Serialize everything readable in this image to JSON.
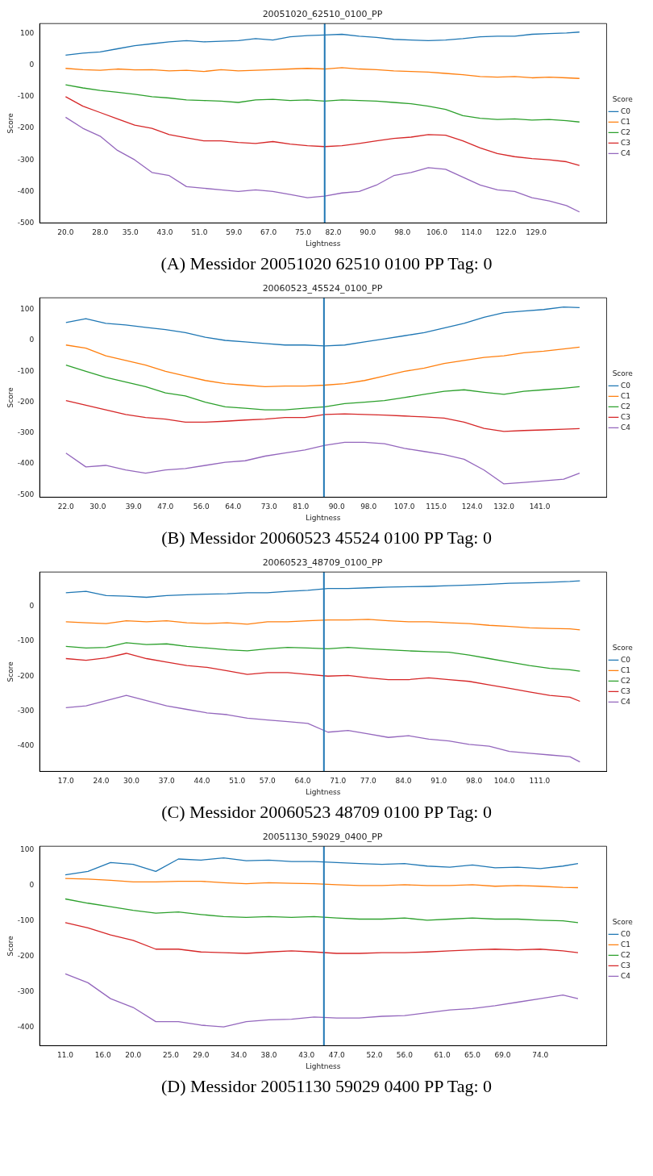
{
  "chart_data": [
    {
      "type": "line",
      "title": "20051020_62510_0100_PP",
      "xlabel": "Lightness",
      "ylabel": "Score",
      "legend_title": "Score",
      "legend": "right",
      "annotations": [
        "(A) Messidor 20051020 62510 0100 PP Tag: 0"
      ],
      "x": [
        20,
        24,
        28,
        32,
        36,
        40,
        44,
        48,
        52,
        56,
        60,
        64,
        68,
        72,
        76,
        80,
        84,
        88,
        92,
        96,
        100,
        104,
        108,
        112,
        116,
        120,
        124,
        128,
        132,
        136,
        139
      ],
      "xlim": [
        14,
        145.3
      ],
      "ylim": [
        -500,
        132
      ],
      "xticks": [
        {
          "value": 20,
          "label": "20.0"
        },
        {
          "value": 28,
          "label": "28.0"
        },
        {
          "value": 35,
          "label": "35.0"
        },
        {
          "value": 43,
          "label": "43.0"
        },
        {
          "value": 51,
          "label": "51.0"
        },
        {
          "value": 59,
          "label": "59.0"
        },
        {
          "value": 67,
          "label": "67.0"
        },
        {
          "value": 75,
          "label": "75.0"
        },
        {
          "value": 82,
          "label": "82.0"
        },
        {
          "value": 90,
          "label": "90.0"
        },
        {
          "value": 98,
          "label": "98.0"
        },
        {
          "value": 106,
          "label": "106.0"
        },
        {
          "value": 114,
          "label": "114.0"
        },
        {
          "value": 122,
          "label": "122.0"
        },
        {
          "value": 129,
          "label": "129.0"
        }
      ],
      "yticks": [
        -500,
        -400,
        -300,
        -200,
        -100,
        0,
        100
      ],
      "ref_lines": [
        {
          "axis": "x",
          "value": 80,
          "color": "#1f77b4"
        }
      ],
      "series": [
        {
          "name": "C0",
          "color": "#1f77b4",
          "values": [
            32,
            38,
            42,
            52,
            62,
            68,
            74,
            78,
            74,
            76,
            78,
            84,
            80,
            90,
            94,
            96,
            98,
            92,
            88,
            82,
            80,
            78,
            80,
            84,
            90,
            92,
            92,
            98,
            100,
            102,
            105
          ]
        },
        {
          "name": "C1",
          "color": "#ff7f0e",
          "values": [
            -10,
            -14,
            -16,
            -12,
            -15,
            -14,
            -18,
            -16,
            -20,
            -14,
            -18,
            -16,
            -14,
            -12,
            -10,
            -12,
            -8,
            -12,
            -14,
            -18,
            -20,
            -22,
            -26,
            -30,
            -36,
            -38,
            -36,
            -40,
            -38,
            -40,
            -42
          ]
        },
        {
          "name": "C2",
          "color": "#2ca02c",
          "values": [
            -62,
            -72,
            -80,
            -86,
            -92,
            -100,
            -104,
            -110,
            -112,
            -114,
            -118,
            -110,
            -108,
            -112,
            -110,
            -114,
            -110,
            -112,
            -114,
            -118,
            -122,
            -130,
            -140,
            -160,
            -168,
            -172,
            -170,
            -174,
            -172,
            -176,
            -180
          ]
        },
        {
          "name": "C3",
          "color": "#d62728",
          "values": [
            -100,
            -130,
            -150,
            -170,
            -190,
            -200,
            -220,
            -230,
            -240,
            -240,
            -245,
            -248,
            -242,
            -250,
            -255,
            -258,
            -255,
            -248,
            -240,
            -232,
            -228,
            -220,
            -222,
            -240,
            -262,
            -280,
            -290,
            -296,
            -300,
            -306,
            -318
          ]
        },
        {
          "name": "C4",
          "color": "#9467bd",
          "values": [
            -165,
            -200,
            -225,
            -270,
            -300,
            -340,
            -350,
            -385,
            -390,
            -395,
            -400,
            -395,
            -400,
            -410,
            -420,
            -415,
            -405,
            -400,
            -380,
            -350,
            -340,
            -325,
            -330,
            -355,
            -380,
            -395,
            -400,
            -420,
            -430,
            -445,
            -465
          ]
        }
      ]
    },
    {
      "type": "line",
      "title": "20060523_45524_0100_PP",
      "xlabel": "Lightness",
      "ylabel": "Score",
      "legend_title": "Score",
      "legend": "right",
      "annotations": [
        "(B) Messidor 20060523 45524 0100 PP Tag: 0"
      ],
      "x": [
        22,
        27,
        32,
        37,
        42,
        47,
        52,
        57,
        62,
        67,
        72,
        77,
        82,
        87,
        92,
        97,
        102,
        107,
        112,
        117,
        122,
        127,
        132,
        137,
        142,
        147,
        151
      ],
      "xlim": [
        15.4,
        157.8
      ],
      "ylim": [
        -508,
        138
      ],
      "xticks": [
        {
          "value": 22,
          "label": "22.0"
        },
        {
          "value": 30,
          "label": "30.0"
        },
        {
          "value": 39,
          "label": "39.0"
        },
        {
          "value": 47,
          "label": "47.0"
        },
        {
          "value": 56,
          "label": "56.0"
        },
        {
          "value": 64,
          "label": "64.0"
        },
        {
          "value": 73,
          "label": "73.0"
        },
        {
          "value": 81,
          "label": "81.0"
        },
        {
          "value": 90,
          "label": "90.0"
        },
        {
          "value": 98,
          "label": "98.0"
        },
        {
          "value": 107,
          "label": "107.0"
        },
        {
          "value": 115,
          "label": "115.0"
        },
        {
          "value": 124,
          "label": "124.0"
        },
        {
          "value": 132,
          "label": "132.0"
        },
        {
          "value": 141,
          "label": "141.0"
        }
      ],
      "yticks": [
        -500,
        -400,
        -300,
        -200,
        -100,
        0,
        100
      ],
      "ref_lines": [
        {
          "axis": "x",
          "value": 86.8,
          "color": "#1f77b4"
        }
      ],
      "series": [
        {
          "name": "C0",
          "color": "#1f77b4",
          "values": [
            58,
            70,
            55,
            50,
            42,
            35,
            25,
            10,
            0,
            -5,
            -10,
            -15,
            -15,
            -18,
            -15,
            -5,
            5,
            15,
            25,
            40,
            55,
            75,
            90,
            95,
            100,
            108,
            106
          ]
        },
        {
          "name": "C1",
          "color": "#ff7f0e",
          "values": [
            -15,
            -25,
            -50,
            -65,
            -80,
            -100,
            -115,
            -130,
            -140,
            -145,
            -150,
            -148,
            -148,
            -145,
            -140,
            -130,
            -115,
            -100,
            -90,
            -75,
            -65,
            -55,
            -50,
            -40,
            -35,
            -28,
            -22
          ]
        },
        {
          "name": "C2",
          "color": "#2ca02c",
          "values": [
            -80,
            -100,
            -120,
            -135,
            -150,
            -170,
            -180,
            -200,
            -215,
            -220,
            -225,
            -225,
            -220,
            -215,
            -205,
            -200,
            -195,
            -185,
            -175,
            -165,
            -160,
            -168,
            -175,
            -165,
            -160,
            -155,
            -150
          ]
        },
        {
          "name": "C3",
          "color": "#d62728",
          "values": [
            -195,
            -210,
            -225,
            -240,
            -250,
            -255,
            -265,
            -265,
            -262,
            -258,
            -255,
            -250,
            -250,
            -240,
            -238,
            -240,
            -242,
            -245,
            -248,
            -252,
            -265,
            -285,
            -295,
            -292,
            -290,
            -288,
            -286
          ]
        },
        {
          "name": "C4",
          "color": "#9467bd",
          "values": [
            -365,
            -410,
            -405,
            -420,
            -430,
            -420,
            -415,
            -405,
            -395,
            -390,
            -375,
            -365,
            -355,
            -340,
            -330,
            -330,
            -335,
            -350,
            -360,
            -370,
            -385,
            -420,
            -465,
            -460,
            -455,
            -450,
            -430
          ]
        }
      ]
    },
    {
      "type": "line",
      "title": "20060523_48709_0100_PP",
      "xlabel": "Lightness",
      "ylabel": "Score",
      "legend_title": "Score",
      "legend": "right",
      "annotations": [
        "(C) Messidor 20060523 48709 0100 PP Tag: 0"
      ],
      "x": [
        17,
        21,
        25,
        29,
        33,
        37,
        41,
        45,
        49,
        53,
        57,
        61,
        65,
        69,
        73,
        77,
        81,
        85,
        89,
        93,
        97,
        101,
        105,
        109,
        113,
        117,
        119
      ],
      "xlim": [
        11.8,
        124.3
      ],
      "ylim": [
        -472,
        97
      ],
      "xticks": [
        {
          "value": 17,
          "label": "17.0"
        },
        {
          "value": 24,
          "label": "24.0"
        },
        {
          "value": 30,
          "label": "30.0"
        },
        {
          "value": 37,
          "label": "37.0"
        },
        {
          "value": 44,
          "label": "44.0"
        },
        {
          "value": 51,
          "label": "51.0"
        },
        {
          "value": 57,
          "label": "57.0"
        },
        {
          "value": 64,
          "label": "64.0"
        },
        {
          "value": 71,
          "label": "71.0"
        },
        {
          "value": 77,
          "label": "77.0"
        },
        {
          "value": 84,
          "label": "84.0"
        },
        {
          "value": 91,
          "label": "91.0"
        },
        {
          "value": 98,
          "label": "98.0"
        },
        {
          "value": 104,
          "label": "104.0"
        },
        {
          "value": 111,
          "label": "111.0"
        }
      ],
      "yticks": [
        -400,
        -300,
        -200,
        -100,
        0
      ],
      "ref_lines": [
        {
          "axis": "x",
          "value": 68.2,
          "color": "#1f77b4"
        }
      ],
      "series": [
        {
          "name": "C0",
          "color": "#1f77b4",
          "values": [
            38,
            42,
            30,
            28,
            25,
            30,
            32,
            34,
            35,
            38,
            38,
            42,
            45,
            50,
            50,
            52,
            54,
            55,
            56,
            58,
            60,
            62,
            65,
            66,
            68,
            70,
            72
          ]
        },
        {
          "name": "C1",
          "color": "#ff7f0e",
          "values": [
            -45,
            -48,
            -50,
            -42,
            -45,
            -42,
            -48,
            -50,
            -48,
            -52,
            -45,
            -45,
            -42,
            -40,
            -40,
            -38,
            -42,
            -45,
            -45,
            -48,
            -50,
            -55,
            -58,
            -62,
            -64,
            -65,
            -68
          ]
        },
        {
          "name": "C2",
          "color": "#2ca02c",
          "values": [
            -115,
            -120,
            -118,
            -105,
            -110,
            -108,
            -115,
            -120,
            -125,
            -128,
            -122,
            -118,
            -120,
            -122,
            -118,
            -122,
            -125,
            -128,
            -130,
            -132,
            -140,
            -150,
            -160,
            -170,
            -178,
            -182,
            -186
          ]
        },
        {
          "name": "C3",
          "color": "#d62728",
          "values": [
            -150,
            -155,
            -148,
            -135,
            -150,
            -160,
            -170,
            -175,
            -185,
            -195,
            -190,
            -190,
            -195,
            -200,
            -198,
            -205,
            -210,
            -210,
            -205,
            -210,
            -215,
            -225,
            -235,
            -245,
            -255,
            -260,
            -272
          ]
        },
        {
          "name": "C4",
          "color": "#9467bd",
          "values": [
            -290,
            -285,
            -270,
            -255,
            -270,
            -285,
            -295,
            -305,
            -310,
            -320,
            -325,
            -330,
            -335,
            -360,
            -355,
            -365,
            -375,
            -370,
            -380,
            -385,
            -395,
            -400,
            -415,
            -420,
            -425,
            -430,
            -445
          ]
        }
      ]
    },
    {
      "type": "line",
      "title": "20051130_59029_0400_PP",
      "xlabel": "Lightness",
      "ylabel": "Score",
      "legend_title": "Score",
      "legend": "right",
      "annotations": [
        "(D) Messidor 20051130 59029 0400 PP Tag: 0"
      ],
      "x": [
        11,
        14,
        17,
        20,
        23,
        26,
        29,
        32,
        35,
        38,
        41,
        44,
        47,
        50,
        53,
        56,
        59,
        62,
        65,
        68,
        71,
        74,
        77,
        79
      ],
      "xlim": [
        7.6,
        82.8
      ],
      "ylim": [
        -453,
        111
      ],
      "xticks": [
        {
          "value": 11,
          "label": "11.0"
        },
        {
          "value": 16,
          "label": "16.0"
        },
        {
          "value": 20,
          "label": "20.0"
        },
        {
          "value": 25,
          "label": "25.0"
        },
        {
          "value": 29,
          "label": "29.0"
        },
        {
          "value": 34,
          "label": "34.0"
        },
        {
          "value": 38,
          "label": "38.0"
        },
        {
          "value": 43,
          "label": "43.0"
        },
        {
          "value": 47,
          "label": "47.0"
        },
        {
          "value": 52,
          "label": "52.0"
        },
        {
          "value": 56,
          "label": "56.0"
        },
        {
          "value": 61,
          "label": "61.0"
        },
        {
          "value": 65,
          "label": "65.0"
        },
        {
          "value": 69,
          "label": "69.0"
        },
        {
          "value": 74,
          "label": "74.0"
        }
      ],
      "yticks": [
        -400,
        -300,
        -200,
        -100,
        0,
        100
      ],
      "ref_lines": [
        {
          "axis": "x",
          "value": 45.3,
          "color": "#1f77b4"
        }
      ],
      "series": [
        {
          "name": "C0",
          "color": "#1f77b4",
          "values": [
            30,
            40,
            65,
            60,
            40,
            75,
            72,
            78,
            70,
            72,
            68,
            68,
            65,
            62,
            60,
            62,
            55,
            52,
            58,
            50,
            52,
            48,
            55,
            62
          ]
        },
        {
          "name": "C1",
          "color": "#ff7f0e",
          "values": [
            20,
            18,
            15,
            10,
            10,
            12,
            12,
            8,
            5,
            8,
            6,
            5,
            2,
            0,
            0,
            2,
            0,
            0,
            2,
            -2,
            0,
            -2,
            -5,
            -6
          ]
        },
        {
          "name": "C2",
          "color": "#2ca02c",
          "values": [
            -38,
            -50,
            -60,
            -70,
            -78,
            -75,
            -82,
            -88,
            -90,
            -88,
            -90,
            -88,
            -92,
            -95,
            -95,
            -92,
            -98,
            -95,
            -92,
            -95,
            -95,
            -98,
            -100,
            -105
          ]
        },
        {
          "name": "C3",
          "color": "#d62728",
          "values": [
            -105,
            -120,
            -140,
            -155,
            -180,
            -180,
            -188,
            -190,
            -192,
            -188,
            -185,
            -188,
            -192,
            -192,
            -190,
            -190,
            -188,
            -185,
            -182,
            -180,
            -182,
            -180,
            -185,
            -190
          ]
        },
        {
          "name": "C4",
          "color": "#9467bd",
          "values": [
            -250,
            -275,
            -320,
            -345,
            -385,
            -385,
            -395,
            -400,
            -385,
            -380,
            -378,
            -372,
            -375,
            -375,
            -370,
            -368,
            -360,
            -352,
            -348,
            -340,
            -330,
            -320,
            -310,
            -320
          ]
        }
      ]
    }
  ]
}
